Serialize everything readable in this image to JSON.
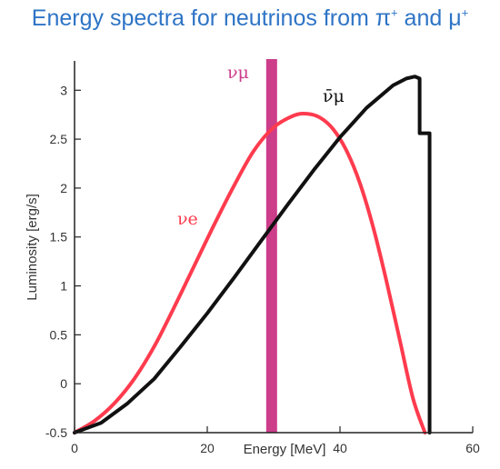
{
  "title": {
    "text": "Energy spectra for neutrinos from π",
    "sup1": "+",
    "middle": " and μ",
    "sup2": "+"
  },
  "chart_data": {
    "type": "line",
    "xlabel": "Energy [MeV]",
    "ylabel": "Luminosity [erg/s]",
    "xlim": [
      0,
      60
    ],
    "ylim": [
      -0.5,
      3.3
    ],
    "x_ticks": [
      0,
      20,
      40,
      60
    ],
    "x_tick_labels": [
      "0",
      "20",
      "40",
      "60"
    ],
    "y_ticks": [
      -0.5,
      0,
      0.5,
      1,
      1.5,
      2,
      2.5,
      3
    ],
    "y_tick_labels": [
      "-0.5",
      "0",
      "0.5",
      "1",
      "1.5",
      "2",
      "2.5",
      "3"
    ],
    "grid": false,
    "series": [
      {
        "name": "νe",
        "color": "#ff3b4e",
        "x": [
          0,
          3,
          6,
          9,
          12,
          15,
          18,
          21,
          24,
          27,
          30,
          33,
          35,
          37,
          39,
          41,
          43,
          45,
          47,
          49,
          51,
          52.8
        ],
        "y": [
          -0.5,
          -0.38,
          -0.2,
          0.05,
          0.38,
          0.78,
          1.2,
          1.62,
          2.02,
          2.38,
          2.62,
          2.74,
          2.76,
          2.72,
          2.6,
          2.38,
          2.05,
          1.6,
          1.05,
          0.45,
          -0.15,
          -0.5
        ]
      },
      {
        "name": "ν̄μ",
        "color": "#111111",
        "x": [
          0,
          4,
          8,
          12,
          16,
          20,
          24,
          28,
          32,
          36,
          40,
          44,
          48,
          50,
          51.3,
          52,
          52,
          53.5,
          53.5
        ],
        "y": [
          -0.5,
          -0.4,
          -0.2,
          0.05,
          0.38,
          0.72,
          1.08,
          1.45,
          1.82,
          2.18,
          2.52,
          2.82,
          3.05,
          3.12,
          3.14,
          3.12,
          2.56,
          2.56,
          -0.5
        ]
      }
    ],
    "bands": [
      {
        "name": "νμ",
        "x": 29.7,
        "color": "#cc3d8a"
      }
    ],
    "annotations": {
      "nu_e": "νe",
      "nu_mu": "νμ",
      "nu_mu_bar": "ν̄μ"
    }
  }
}
